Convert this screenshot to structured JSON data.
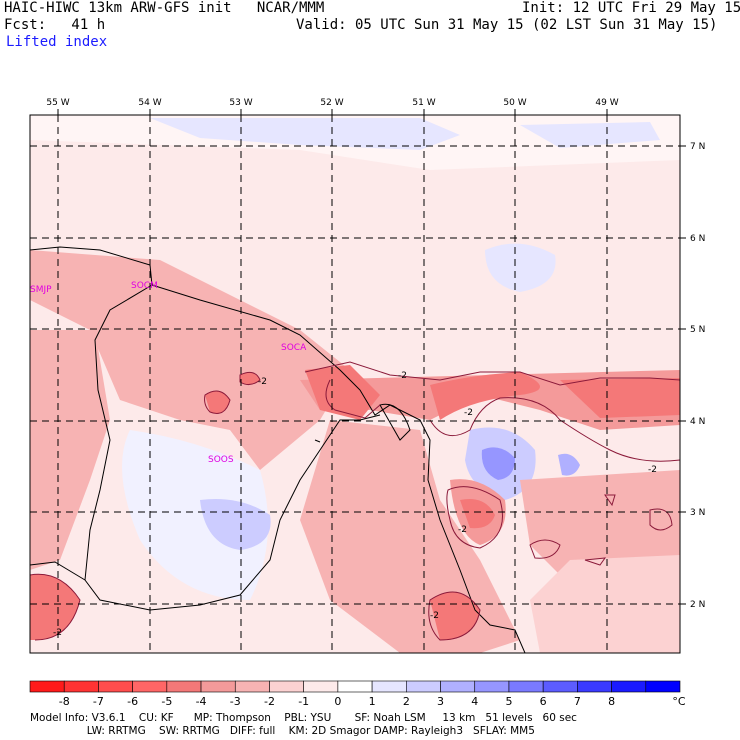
{
  "header": {
    "model_line": "HAIC-HIWC 13km ARW-GFS init   NCAR/MMM",
    "fcst_line": "Fcst:   41 h",
    "field_name": "Lifted index",
    "init_line": "Init: 12 UTC Fri 29 May 15",
    "valid_line": "Valid: 05 UTC Sun 31 May 15 (02 LST Sun 31 May 15)"
  },
  "map": {
    "lon_labels": [
      "55 W",
      "54 W",
      "53 W",
      "52 W",
      "51 W",
      "50 W",
      "49 W"
    ],
    "lat_labels": [
      "7 N",
      "6 N",
      "5 N",
      "4 N",
      "3 N",
      "2 N"
    ],
    "stations": [
      "SMJP",
      "SOCM",
      "SOCA",
      "SOOS"
    ],
    "contour_labels": [
      "-2",
      "-2",
      "-2",
      "-2",
      "-2",
      "-2",
      "-2"
    ]
  },
  "colorbar": {
    "colors": [
      "#ff1a1a",
      "#ff3333",
      "#ff4d4d",
      "#ff6666",
      "#f47878",
      "#f49a9a",
      "#f7b3b3",
      "#fcd2d2",
      "#fdeaea",
      "#ffffff",
      "#e6e6ff",
      "#ccccff",
      "#b0b0ff",
      "#9696ff",
      "#7a7aff",
      "#5c5cff",
      "#3a3aff",
      "#1a1aff",
      "#0000ff"
    ],
    "tick_labels": [
      "-8",
      "-7",
      "-6",
      "-5",
      "-4",
      "-3",
      "-2",
      "-1",
      "0",
      "1",
      "2",
      "3",
      "4",
      "5",
      "6",
      "7",
      "8"
    ],
    "unit": "°C"
  },
  "footer": {
    "line1": "Model Info: V3.6.1    CU: KF      MP: Thompson    PBL: YSU       SF: Noah LSM     13 km   51 levels   60 sec",
    "line2": "                 LW: RRTMG    SW: RRTMG   DIFF: full    KM: 2D Smagor DAMP: Rayleigh3   SFLAY: MM5"
  }
}
